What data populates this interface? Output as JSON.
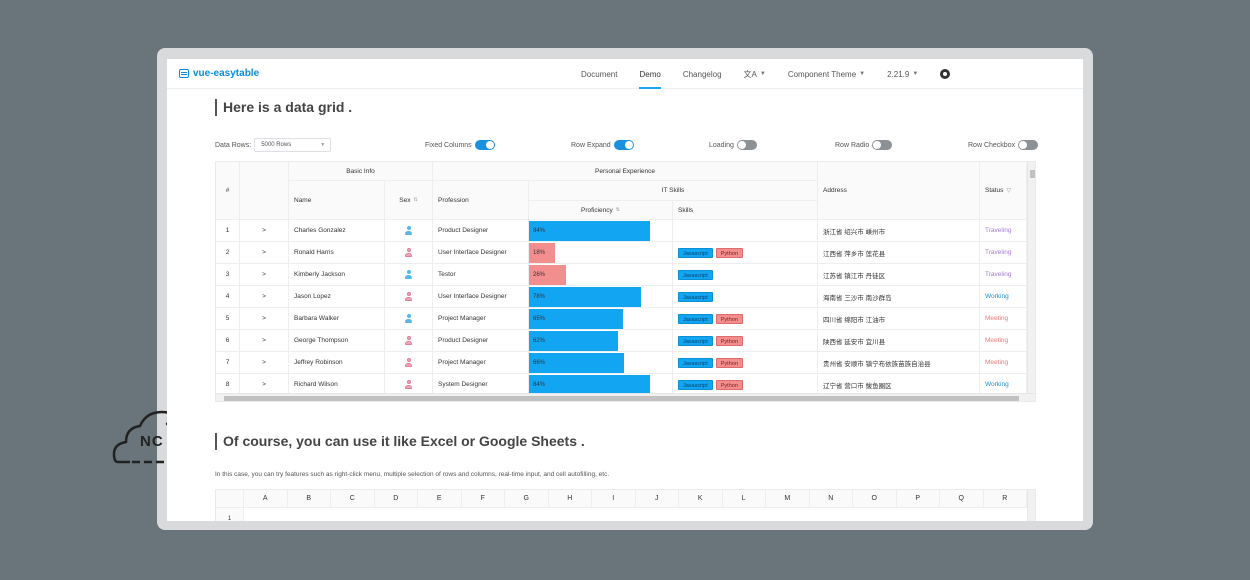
{
  "nav": {
    "logo": "vue-easytable",
    "links": [
      "Document",
      "Demo",
      "Changelog"
    ],
    "lang_icon": "translate-icon",
    "theme": "Component Theme",
    "version": "2.21.9",
    "github_icon": "github-icon"
  },
  "section1": {
    "title": "Here is a data grid ."
  },
  "controls": {
    "data_rows_label": "Data Rows:",
    "data_rows_value": "5000 Rows",
    "fixed_columns": "Fixed Columns",
    "row_expand": "Row Expand",
    "loading": "Loading",
    "row_radio": "Row Radio",
    "row_checkbox": "Row Checkbox"
  },
  "grid": {
    "headers": {
      "index": "#",
      "basic_info": "Basic Info",
      "personal_experience": "Personal Experience",
      "name": "Name",
      "sex": "Sex",
      "profession": "Profession",
      "it_skills": "IT Skills",
      "proficiency": "Proficiency",
      "skills": "Skills",
      "address": "Address",
      "status": "Status"
    },
    "expand_glyph": ">",
    "rows": [
      {
        "index": "1",
        "name": "Charles Gonzalez",
        "sex": "male",
        "profession": "Product Designer",
        "proficiency": 84,
        "proficiency_label": "84%",
        "skills": [],
        "address": "浙江省 绍兴市 嵊州市",
        "status": "Traveling"
      },
      {
        "index": "2",
        "name": "Ronald Harris",
        "sex": "female",
        "profession": "User Interface Designer",
        "proficiency": 18,
        "proficiency_label": "18%",
        "skills": [
          "Javascript",
          "Python"
        ],
        "address": "江西省 萍乡市 莲花县",
        "status": "Traveling"
      },
      {
        "index": "3",
        "name": "Kimberly Jackson",
        "sex": "male",
        "profession": "Testor",
        "proficiency": 26,
        "proficiency_label": "26%",
        "skills": [
          "Javascript"
        ],
        "address": "江苏省 镇江市 丹徒区",
        "status": "Traveling"
      },
      {
        "index": "4",
        "name": "Jason Lopez",
        "sex": "female",
        "profession": "User Interface Designer",
        "proficiency": 78,
        "proficiency_label": "78%",
        "skills": [
          "Javascript"
        ],
        "address": "海南省 三沙市 南沙群岛",
        "status": "Working"
      },
      {
        "index": "5",
        "name": "Barbara Walker",
        "sex": "male",
        "profession": "Project Manager",
        "proficiency": 65,
        "proficiency_label": "65%",
        "skills": [
          "Javascript",
          "Python"
        ],
        "address": "四川省 绵阳市 江油市",
        "status": "Meeting"
      },
      {
        "index": "6",
        "name": "George Thompson",
        "sex": "female",
        "profession": "Product Designer",
        "proficiency": 62,
        "proficiency_label": "62%",
        "skills": [
          "Javascript",
          "Python"
        ],
        "address": "陕西省 延安市 宜川县",
        "status": "Meeting"
      },
      {
        "index": "7",
        "name": "Jeffrey Robinson",
        "sex": "female",
        "profession": "Project Manager",
        "proficiency": 66,
        "proficiency_label": "66%",
        "skills": [
          "Javascript",
          "Python"
        ],
        "address": "贵州省 安顺市 镇宁布依族苗族自治县",
        "status": "Meeting"
      },
      {
        "index": "8",
        "name": "Richard Wilson",
        "sex": "female",
        "profession": "System Designer",
        "proficiency": 84,
        "proficiency_label": "84%",
        "skills": [
          "Javascript",
          "Python"
        ],
        "address": "辽宁省 营口市 鲅鱼圈区",
        "status": "Working"
      }
    ]
  },
  "colors": {
    "bar_high": "#12a6f2",
    "bar_low": "#f38e8e",
    "status_traveling": "#a77bd6",
    "status_working": "#1a8ee0",
    "status_meeting": "#f07878",
    "accent": "#1da1f2"
  },
  "section2": {
    "title": "Of course, you can use it like Excel or Google Sheets .",
    "description": "In this case, you can try features such as right-click menu, multiple selection of rows and columns, real-time input, and cell autofilling, etc.",
    "columns": [
      "A",
      "B",
      "C",
      "D",
      "E",
      "F",
      "G",
      "H",
      "I",
      "J",
      "K",
      "L",
      "M",
      "N",
      "O",
      "P",
      "Q",
      "R"
    ],
    "first_row": "1"
  },
  "watermark": {
    "text": "NC"
  }
}
